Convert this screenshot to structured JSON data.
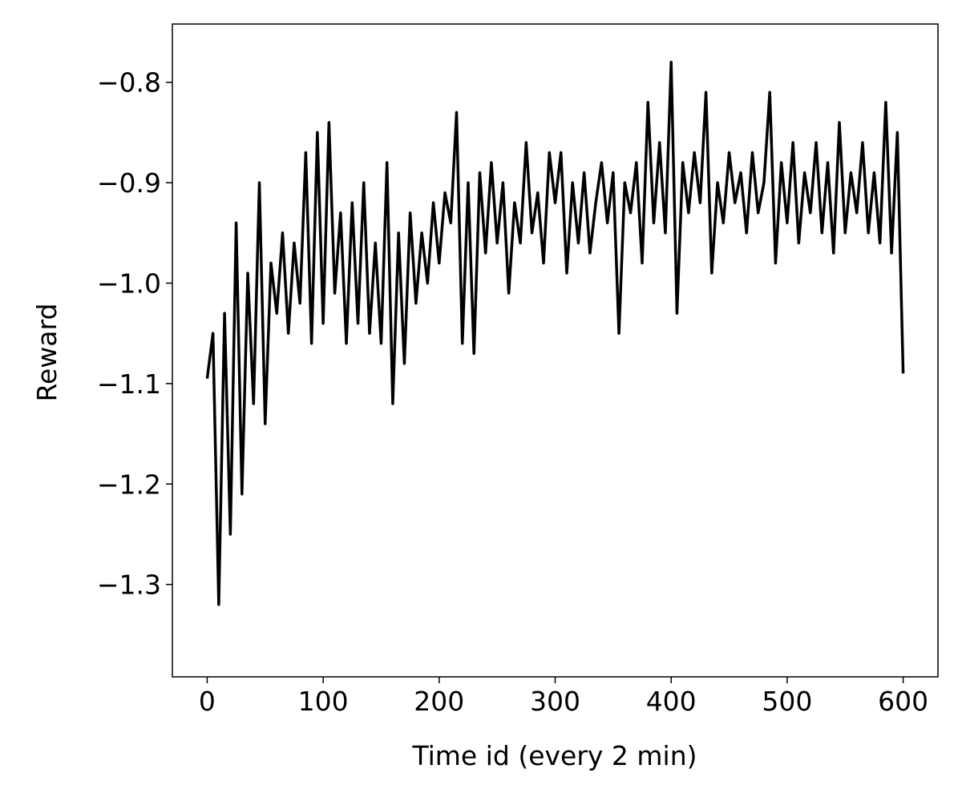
{
  "chart_data": {
    "type": "line",
    "xlabel": "Time id (every 2 min)",
    "ylabel": "Reward",
    "x": [
      0,
      5,
      10,
      15,
      20,
      25,
      30,
      35,
      40,
      45,
      50,
      55,
      60,
      65,
      70,
      75,
      80,
      85,
      90,
      95,
      100,
      105,
      110,
      115,
      120,
      125,
      130,
      135,
      140,
      145,
      150,
      155,
      160,
      165,
      170,
      175,
      180,
      185,
      190,
      195,
      200,
      205,
      210,
      215,
      220,
      225,
      230,
      235,
      240,
      245,
      250,
      255,
      260,
      265,
      270,
      275,
      280,
      285,
      290,
      295,
      300,
      305,
      310,
      315,
      320,
      325,
      330,
      335,
      340,
      345,
      350,
      355,
      360,
      365,
      370,
      375,
      380,
      385,
      390,
      395,
      400,
      405,
      410,
      415,
      420,
      425,
      430,
      435,
      440,
      445,
      450,
      455,
      460,
      465,
      470,
      475,
      480,
      485,
      490,
      495,
      500,
      505,
      510,
      515,
      520,
      525,
      530,
      535,
      540,
      545,
      550,
      555,
      560,
      565,
      570,
      575,
      580,
      585,
      590,
      595,
      600
    ],
    "series": [
      {
        "color": "#000000",
        "values": [
          -1.095,
          -1.05,
          -1.32,
          -1.03,
          -1.25,
          -0.94,
          -1.21,
          -0.99,
          -1.12,
          -0.9,
          -1.14,
          -0.98,
          -1.03,
          -0.95,
          -1.05,
          -0.96,
          -1.02,
          -0.87,
          -1.06,
          -0.85,
          -1.04,
          -0.84,
          -1.01,
          -0.93,
          -1.06,
          -0.92,
          -1.04,
          -0.9,
          -1.05,
          -0.96,
          -1.06,
          -0.88,
          -1.12,
          -0.95,
          -1.08,
          -0.93,
          -1.02,
          -0.95,
          -1.0,
          -0.92,
          -0.98,
          -0.91,
          -0.94,
          -0.83,
          -1.06,
          -0.9,
          -1.07,
          -0.89,
          -0.97,
          -0.88,
          -0.96,
          -0.9,
          -1.01,
          -0.92,
          -0.96,
          -0.86,
          -0.95,
          -0.91,
          -0.98,
          -0.87,
          -0.92,
          -0.87,
          -0.99,
          -0.9,
          -0.96,
          -0.89,
          -0.97,
          -0.92,
          -0.88,
          -0.94,
          -0.89,
          -1.05,
          -0.9,
          -0.93,
          -0.88,
          -0.98,
          -0.82,
          -0.94,
          -0.86,
          -0.95,
          -0.78,
          -1.03,
          -0.88,
          -0.93,
          -0.87,
          -0.92,
          -0.81,
          -0.99,
          -0.9,
          -0.94,
          -0.87,
          -0.92,
          -0.89,
          -0.95,
          -0.87,
          -0.93,
          -0.9,
          -0.81,
          -0.98,
          -0.88,
          -0.94,
          -0.86,
          -0.96,
          -0.89,
          -0.93,
          -0.86,
          -0.95,
          -0.88,
          -0.97,
          -0.84,
          -0.95,
          -0.89,
          -0.93,
          -0.86,
          -0.95,
          -0.89,
          -0.96,
          -0.82,
          -0.97,
          -0.85,
          -1.09
        ]
      }
    ],
    "xlim": [
      -30,
      630
    ],
    "ylim": [
      -1.392,
      -0.742
    ],
    "xticks": [
      0,
      100,
      200,
      300,
      400,
      500,
      600
    ],
    "yticks": [
      {
        "value": -0.8,
        "label": "−0.8"
      },
      {
        "value": -0.9,
        "label": "−0.9"
      },
      {
        "value": -1.0,
        "label": "−1.0"
      },
      {
        "value": -1.1,
        "label": "−1.1"
      },
      {
        "value": -1.2,
        "label": "−1.2"
      },
      {
        "value": -1.3,
        "label": "−1.3"
      }
    ]
  }
}
